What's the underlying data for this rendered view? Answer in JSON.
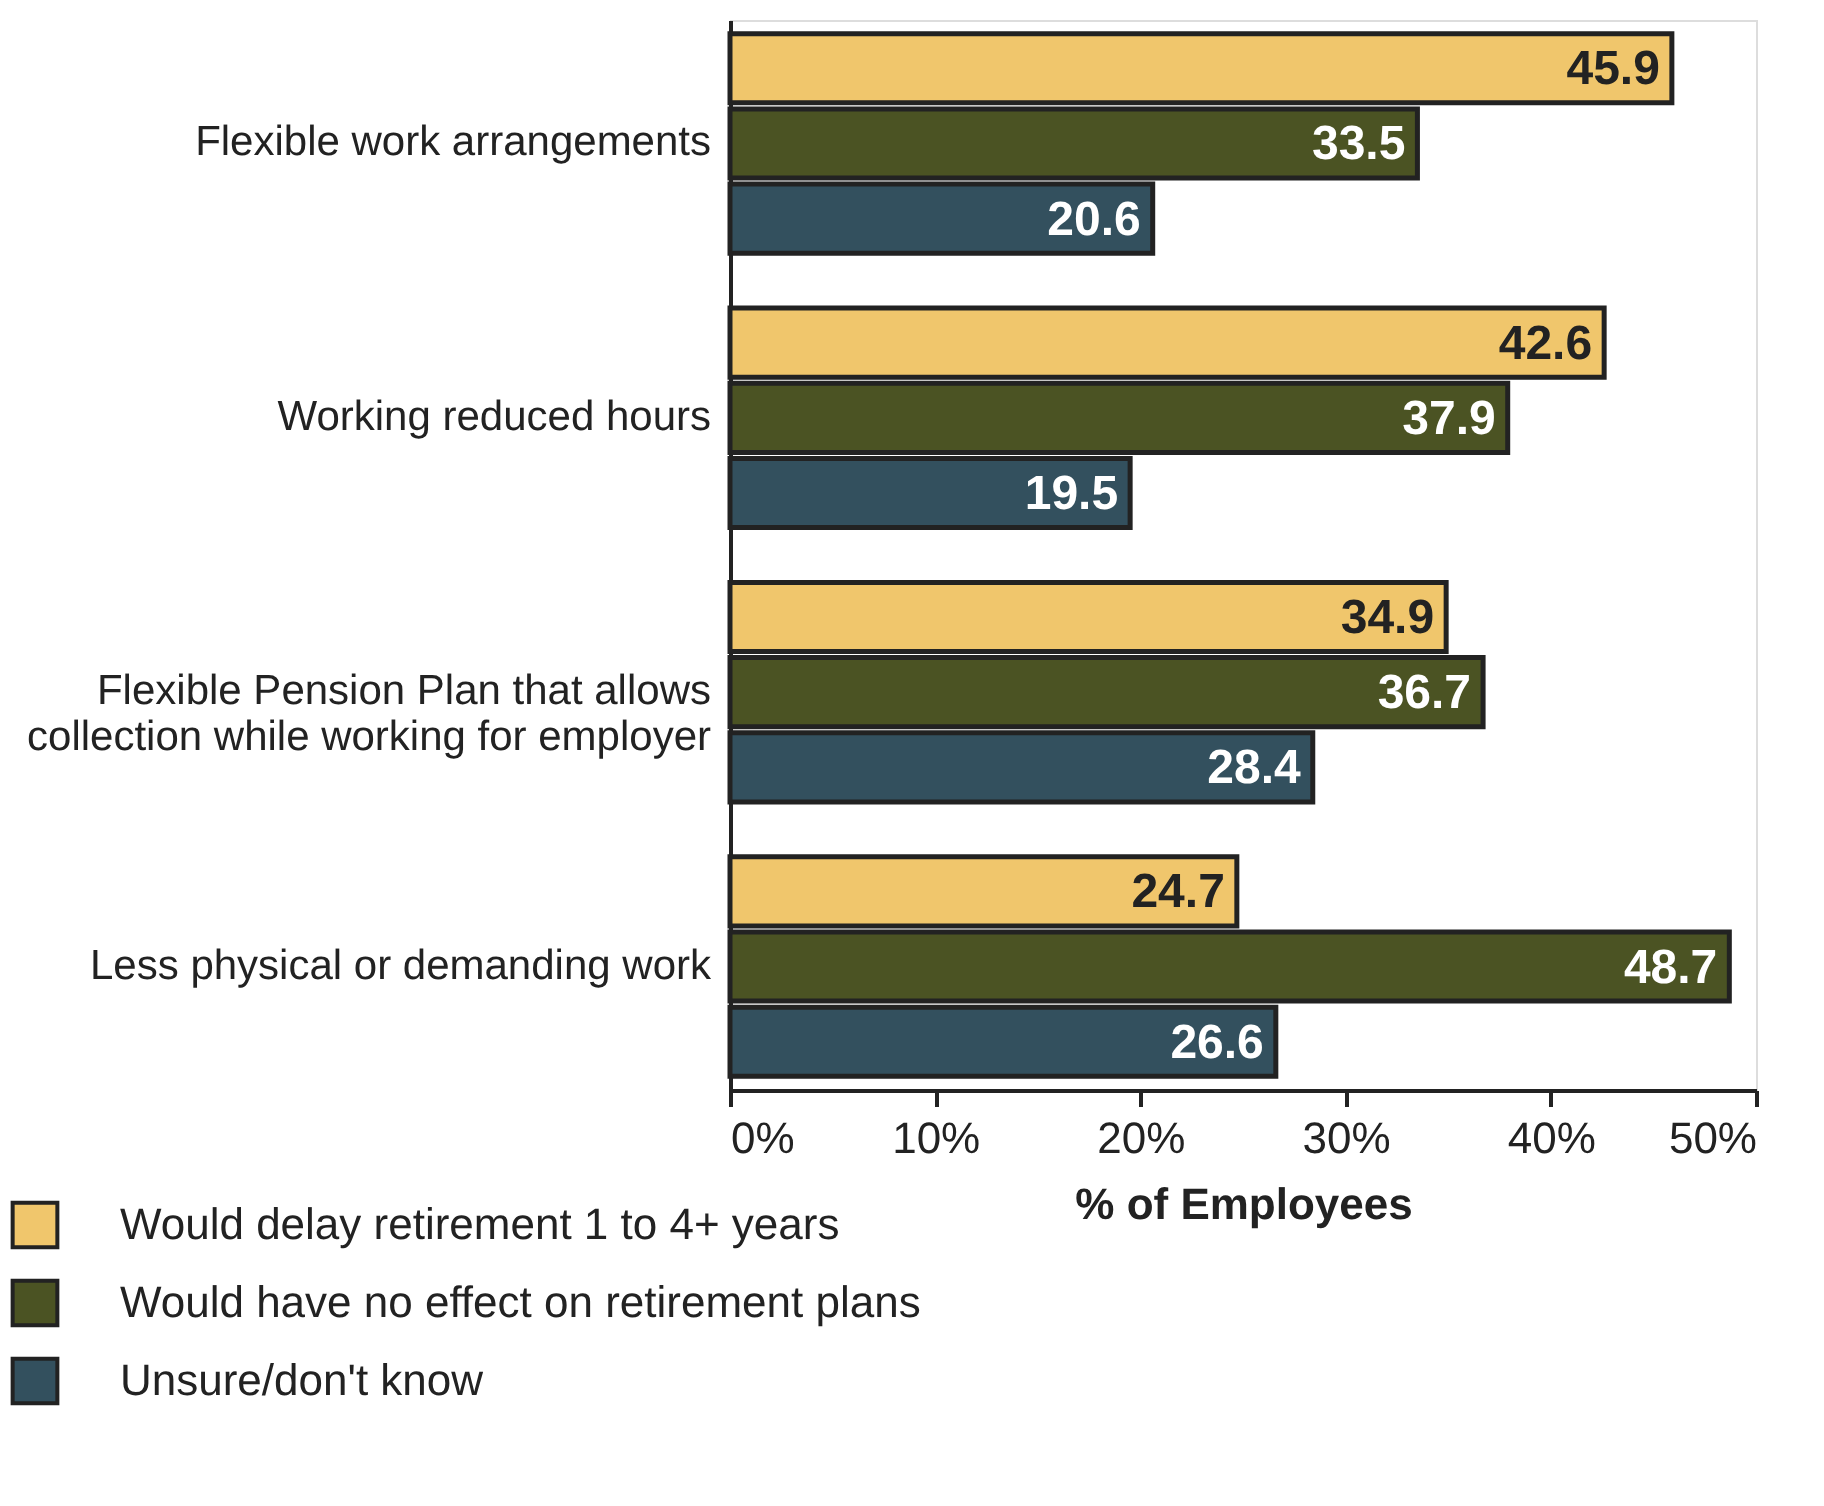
{
  "chart_data": {
    "type": "bar",
    "orientation": "horizontal",
    "xlabel": "% of Employees",
    "categories": [
      "Flexible work arrangements",
      "Working reduced hours",
      "Flexible Pension Plan that allows\ncollection while working for employer",
      "Less physical or demanding work"
    ],
    "series": [
      {
        "name": "Would delay retirement 1 to 4+ years",
        "color": "#f0c66c",
        "values": [
          45.9,
          42.6,
          34.9,
          24.7
        ]
      },
      {
        "name": "Would have no effect on retirement plans",
        "color": "#4b5323",
        "values": [
          33.5,
          37.9,
          36.7,
          48.7
        ]
      },
      {
        "name": "Unsure/don't know",
        "color": "#33505e",
        "values": [
          20.6,
          19.5,
          28.4,
          26.6
        ]
      }
    ],
    "xlim": [
      0,
      50
    ],
    "xticks": [
      {
        "value": 0,
        "label": "0%"
      },
      {
        "value": 10,
        "label": "10%"
      },
      {
        "value": 20,
        "label": "20%"
      },
      {
        "value": 30,
        "label": "30%"
      },
      {
        "value": 40,
        "label": "40%"
      },
      {
        "value": 50,
        "label": "50%"
      }
    ],
    "data_labels": true,
    "grid": false,
    "legend": "bottom left"
  }
}
